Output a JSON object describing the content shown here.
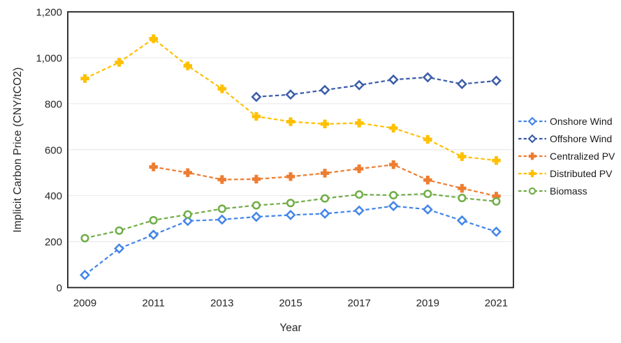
{
  "figure": {
    "background": "#ffffff"
  },
  "chart_data": {
    "type": "line",
    "title": "",
    "xlabel": "Year",
    "ylabel": "Implicit Carbon Price (CNY/tCO2)",
    "x": [
      2009,
      2010,
      2011,
      2012,
      2013,
      2014,
      2015,
      2016,
      2017,
      2018,
      2019,
      2020,
      2021
    ],
    "x_ticks": [
      {
        "index": 0,
        "label": "2009"
      },
      {
        "index": 2,
        "label": "2011"
      },
      {
        "index": 4,
        "label": "2013"
      },
      {
        "index": 6,
        "label": "2015"
      },
      {
        "index": 8,
        "label": "2017"
      },
      {
        "index": 10,
        "label": "2019"
      },
      {
        "index": 12,
        "label": "2021"
      }
    ],
    "y_ticks": [
      {
        "value": 0,
        "label": "0"
      },
      {
        "value": 200,
        "label": "200"
      },
      {
        "value": 400,
        "label": "400"
      },
      {
        "value": 600,
        "label": "600"
      },
      {
        "value": 800,
        "label": "800"
      },
      {
        "value": 1000,
        "label": "1,000"
      },
      {
        "value": 1200,
        "label": "1,200"
      }
    ],
    "ylim": [
      0,
      1200
    ],
    "grid": true,
    "legend_position": "right",
    "line_style": "dashed",
    "axis_color": "#1f1f1f",
    "grid_color": "#e9e9e9",
    "text_color": "#262626",
    "series": [
      {
        "name": "Onshore Wind",
        "marker": "diamond",
        "color": "#4285e8",
        "values": [
          55,
          170,
          230,
          290,
          296,
          308,
          316,
          322,
          335,
          355,
          340,
          292,
          243
        ]
      },
      {
        "name": "Offshore Wind",
        "marker": "diamond",
        "color": "#3a5ca8",
        "values": [
          null,
          null,
          null,
          null,
          null,
          830,
          840,
          860,
          881,
          905,
          915,
          886,
          900
        ]
      },
      {
        "name": "Centralized PV",
        "marker": "plus",
        "color": "#ed7d31",
        "values": [
          null,
          null,
          525,
          500,
          470,
          472,
          483,
          498,
          517,
          535,
          468,
          432,
          398
        ]
      },
      {
        "name": "Distributed PV",
        "marker": "plus",
        "color": "#ffc000",
        "values": [
          910,
          980,
          1083,
          965,
          865,
          745,
          722,
          712,
          716,
          694,
          645,
          570,
          553
        ]
      },
      {
        "name": "Biomass",
        "marker": "circle",
        "color": "#70ad47",
        "values": [
          215,
          248,
          293,
          318,
          343,
          358,
          368,
          388,
          405,
          402,
          408,
          390,
          375
        ]
      }
    ]
  }
}
